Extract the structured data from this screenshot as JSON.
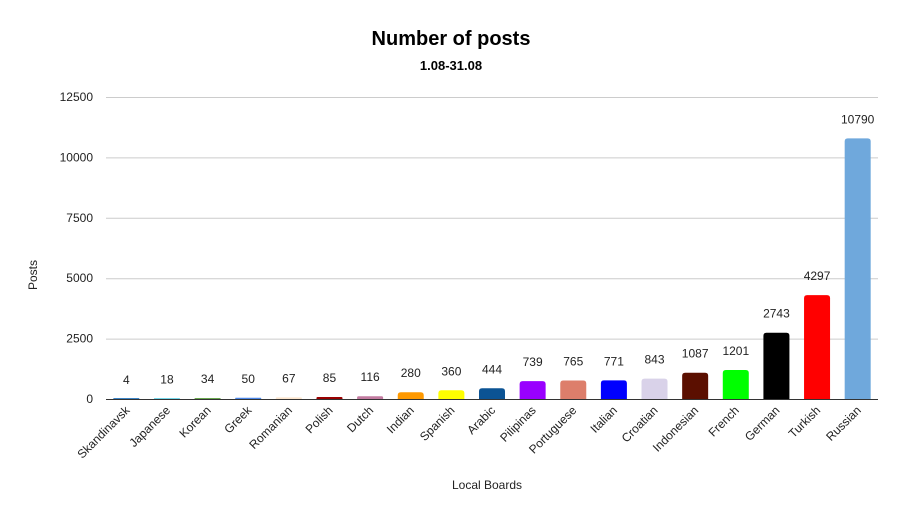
{
  "chart_data": {
    "type": "bar",
    "title": "Number of posts",
    "subtitle": "1.08-31.08",
    "xlabel": "Local Boards",
    "ylabel": "Posts",
    "ylim": [
      0,
      12500
    ],
    "yticks": [
      "0",
      "2500",
      "5000",
      "7500",
      "10000",
      "12500"
    ],
    "grid": true,
    "legend": "none",
    "categories": [
      "Skandinavsk",
      "Japanese",
      "Korean",
      "Greek",
      "Romanian",
      "Polish",
      "Dutch",
      "Indian",
      "Spanish",
      "Arabic",
      "Pilipinas",
      "Portuguese",
      "Italian",
      "Croatian",
      "Indonesian",
      "French",
      "German",
      "Turkish",
      "Russian"
    ],
    "values": [
      4,
      18,
      34,
      50,
      67,
      85,
      116,
      280,
      360,
      444,
      739,
      765,
      771,
      843,
      1087,
      1201,
      2743,
      4297,
      10790
    ],
    "data_labels": [
      "4",
      "18",
      "34",
      "50",
      "67",
      "85",
      "116",
      "280",
      "360",
      "444",
      "739",
      "765",
      "771",
      "843",
      "1087",
      "1201",
      "2743",
      "4297",
      "10790"
    ],
    "colors": [
      "#3d85c6",
      "#76d7ea",
      "#6aa84f",
      "#4a86e8",
      "#fce5cd",
      "#990000",
      "#c27ba0",
      "#ff9900",
      "#ffff00",
      "#0b5394",
      "#9900ff",
      "#dd7e6b",
      "#0000ff",
      "#d9d2e9",
      "#5b0f00",
      "#00ff00",
      "#000000",
      "#ff0000",
      "#6fa8dc"
    ]
  }
}
